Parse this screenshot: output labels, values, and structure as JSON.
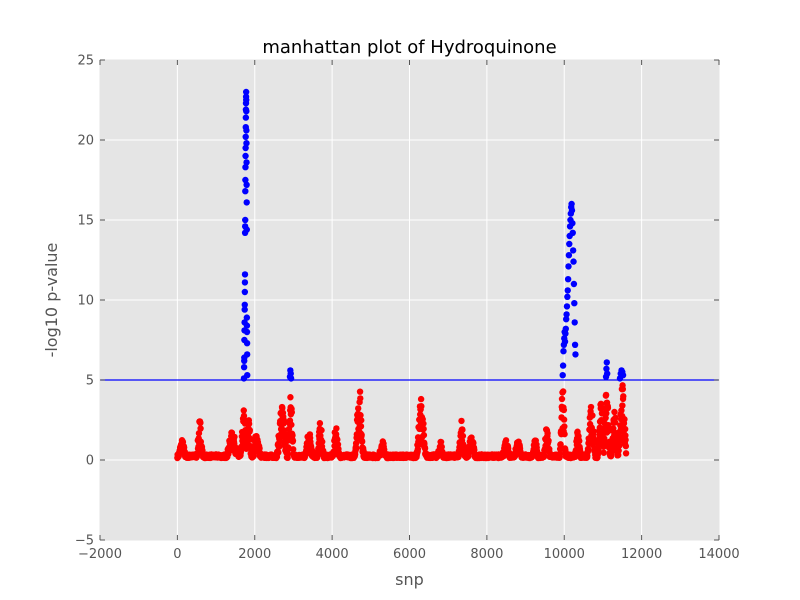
{
  "chart_data": {
    "type": "scatter",
    "title": "manhattan plot of Hydroquinone",
    "xlabel": "snp",
    "ylabel": "-log10 p-value",
    "xlim": [
      -2000,
      14000
    ],
    "ylim": [
      -5,
      25
    ],
    "x_ticks": [
      "−2000",
      "0",
      "2000",
      "4000",
      "6000",
      "8000",
      "10000",
      "12000",
      "14000"
    ],
    "y_ticks": [
      "−5",
      "0",
      "5",
      "10",
      "15",
      "20",
      "25"
    ],
    "grid": true,
    "threshold": 5,
    "colors": {
      "background": "#e5e5e5",
      "below_threshold": "#ff0000",
      "above_threshold": "#0000ff",
      "threshold_line": "#0000ff"
    },
    "series": [
      {
        "points_above_threshold": [
          [
            1720,
            5.1
          ],
          [
            1725,
            5.8
          ],
          [
            1728,
            6.2
          ],
          [
            1730,
            6.4
          ],
          [
            1732,
            7.5
          ],
          [
            1735,
            8.1
          ],
          [
            1737,
            8.6
          ],
          [
            1740,
            9.4
          ],
          [
            1742,
            9.7
          ],
          [
            1744,
            10.5
          ],
          [
            1746,
            11.1
          ],
          [
            1748,
            11.6
          ],
          [
            1750,
            14.2
          ],
          [
            1752,
            14.6
          ],
          [
            1754,
            15.0
          ],
          [
            1756,
            16.8
          ],
          [
            1758,
            17.5
          ],
          [
            1760,
            18.3
          ],
          [
            1762,
            19.0
          ],
          [
            1764,
            19.5
          ],
          [
            1766,
            20.2
          ],
          [
            1768,
            20.8
          ],
          [
            1770,
            21.4
          ],
          [
            1772,
            21.9
          ],
          [
            1774,
            22.3
          ],
          [
            1776,
            22.7
          ],
          [
            1778,
            23.0
          ],
          [
            1780,
            22.5
          ],
          [
            1782,
            21.8
          ],
          [
            1784,
            20.6
          ],
          [
            1786,
            19.8
          ],
          [
            1788,
            18.6
          ],
          [
            1790,
            17.2
          ],
          [
            1792,
            16.1
          ],
          [
            1794,
            14.4
          ],
          [
            1796,
            8.9
          ],
          [
            1798,
            8.4
          ],
          [
            1800,
            8.0
          ],
          [
            1802,
            7.3
          ],
          [
            1804,
            6.6
          ],
          [
            1806,
            5.3
          ],
          [
            2910,
            5.2
          ],
          [
            2920,
            5.6
          ],
          [
            2930,
            5.4
          ],
          [
            2940,
            5.1
          ],
          [
            9960,
            5.3
          ],
          [
            9970,
            5.9
          ],
          [
            9980,
            6.8
          ],
          [
            9990,
            7.2
          ],
          [
            10000,
            7.6
          ],
          [
            10010,
            8.0
          ],
          [
            10020,
            7.4
          ],
          [
            10030,
            7.9
          ],
          [
            10040,
            8.2
          ],
          [
            10050,
            8.8
          ],
          [
            10060,
            9.1
          ],
          [
            10070,
            9.6
          ],
          [
            10080,
            10.2
          ],
          [
            10090,
            10.6
          ],
          [
            10100,
            11.3
          ],
          [
            10110,
            12.1
          ],
          [
            10120,
            12.8
          ],
          [
            10130,
            13.5
          ],
          [
            10140,
            14.0
          ],
          [
            10150,
            14.6
          ],
          [
            10160,
            15.0
          ],
          [
            10170,
            15.4
          ],
          [
            10180,
            15.8
          ],
          [
            10190,
            16.0
          ],
          [
            10200,
            15.6
          ],
          [
            10210,
            14.8
          ],
          [
            10220,
            14.2
          ],
          [
            10230,
            13.1
          ],
          [
            10240,
            12.4
          ],
          [
            10250,
            11.0
          ],
          [
            10260,
            9.8
          ],
          [
            10270,
            8.6
          ],
          [
            10280,
            7.2
          ],
          [
            10290,
            6.6
          ],
          [
            11080,
            5.2
          ],
          [
            11090,
            5.7
          ],
          [
            11100,
            6.1
          ],
          [
            11110,
            5.4
          ],
          [
            11440,
            5.1
          ],
          [
            11460,
            5.4
          ],
          [
            11480,
            5.6
          ],
          [
            11500,
            5.5
          ],
          [
            11520,
            5.3
          ]
        ]
      }
    ]
  }
}
